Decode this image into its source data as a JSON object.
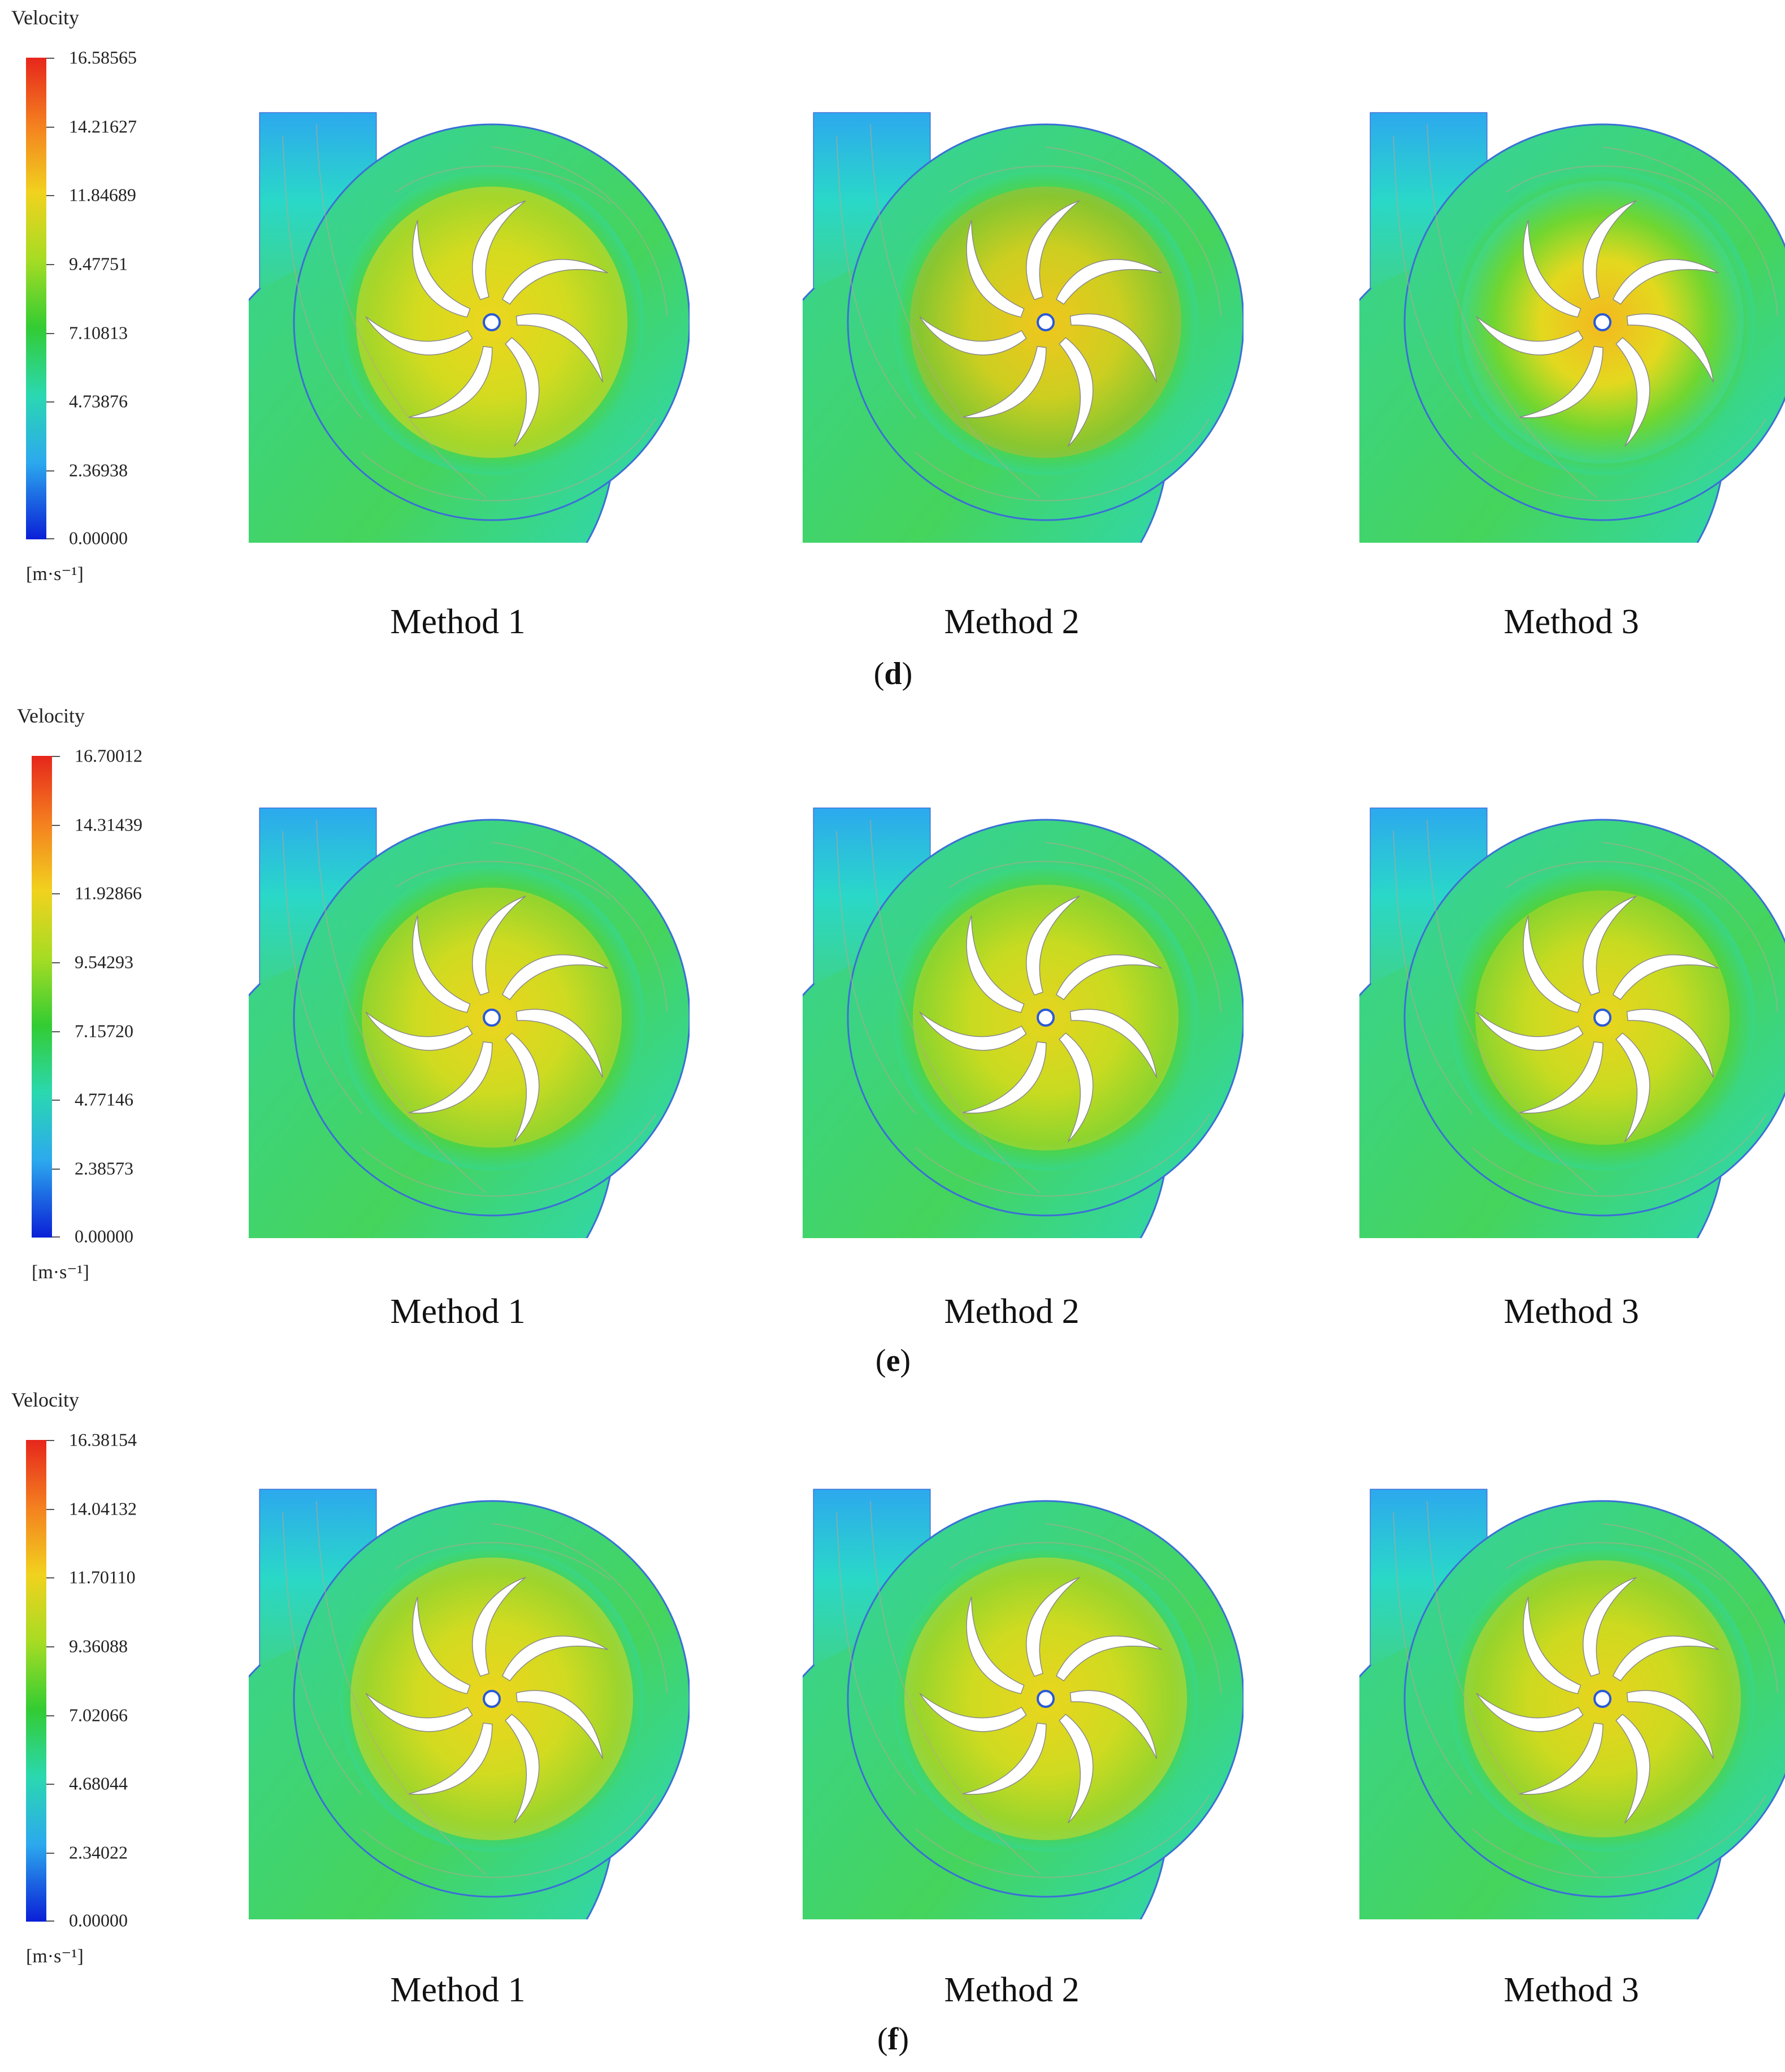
{
  "panels": [
    {
      "caption_letter": "d",
      "legend": {
        "title": "Velocity",
        "unit": "[m·s⁻¹]",
        "ticks": [
          "16.58565",
          "14.21627",
          "11.84689",
          "9.47751",
          "7.10813",
          "4.73876",
          "2.36938",
          "0.00000"
        ]
      },
      "methods": [
        "Method 1",
        "Method 2",
        "Method 3"
      ]
    },
    {
      "caption_letter": "e",
      "legend": {
        "title": "Velocity",
        "unit": "[m·s⁻¹]",
        "ticks": [
          "16.70012",
          "14.31439",
          "11.92866",
          "9.54293",
          "7.15720",
          "4.77146",
          "2.38573",
          "0.00000"
        ]
      },
      "methods": [
        "Method 1",
        "Method 2",
        "Method 3"
      ]
    },
    {
      "caption_letter": "f",
      "legend": {
        "title": "Velocity",
        "unit": "[m·s⁻¹]",
        "ticks": [
          "16.38154",
          "14.04132",
          "11.70110",
          "9.36088",
          "7.02066",
          "4.68044",
          "2.34022",
          "0.00000"
        ]
      },
      "methods": [
        "Method 1",
        "Method 2",
        "Method 3"
      ]
    }
  ],
  "colors": {
    "high": "#e6261c",
    "mid_high": "#f1d21e",
    "mid": "#33cc33",
    "mid_low": "#2ad8b0",
    "low": "#0a1fd6"
  }
}
